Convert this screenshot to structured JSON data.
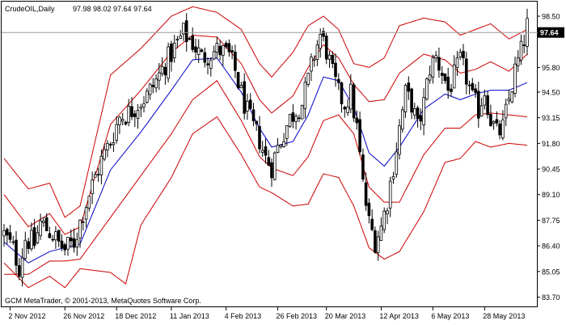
{
  "header": {
    "symbol": "CrudeOIL,Daily",
    "ohlc": "97.98 98.02 97.64 97.64"
  },
  "footer": {
    "copyright": "GCM MetaTrader, © 2001-2013, MetaQuotes Software Corp."
  },
  "chart_data": {
    "type": "candlestick",
    "current_price": "97.64",
    "ylim": [
      83.7,
      98.65
    ],
    "y_ticks": [
      "98.50",
      "97.15",
      "95.80",
      "94.50",
      "93.15",
      "91.80",
      "90.45",
      "89.10",
      "87.75",
      "86.40",
      "85.05",
      "83.70"
    ],
    "x_ticks": [
      "2 Nov 2012",
      "26 Nov 2012",
      "18 Dec 2012",
      "11 Jan 2013",
      "4 Feb 2013",
      "26 Feb 2013",
      "20 Mar 2013",
      "12 Apr 2013",
      "6 May 2013",
      "28 May 2013"
    ],
    "colors": {
      "candle": "#000000",
      "inner_bands": "#cc0000",
      "middle_bands": "#0000cc",
      "outer_bands": "#cc0000",
      "current_price_tag": "#000000"
    },
    "close_path": [
      [
        0,
        87.0
      ],
      [
        3,
        86.2
      ],
      [
        5,
        85.3
      ],
      [
        7,
        86.8
      ],
      [
        10,
        86.5
      ],
      [
        12,
        87.6
      ],
      [
        14,
        87.3
      ],
      [
        16,
        87.0
      ],
      [
        18,
        86.5
      ],
      [
        20,
        86.2
      ],
      [
        23,
        86.6
      ],
      [
        26,
        88.2
      ],
      [
        29,
        89.6
      ],
      [
        32,
        90.9
      ],
      [
        35,
        91.9
      ],
      [
        38,
        93.2
      ],
      [
        41,
        93.4
      ],
      [
        44,
        93.9
      ],
      [
        47,
        94.3
      ],
      [
        50,
        95.1
      ],
      [
        53,
        96.0
      ],
      [
        56,
        96.8
      ],
      [
        59,
        97.6
      ],
      [
        62,
        97.1
      ],
      [
        65,
        96.3
      ],
      [
        68,
        96.6
      ],
      [
        71,
        96.7
      ],
      [
        74,
        96.4
      ],
      [
        76,
        95.6
      ],
      [
        78,
        94.4
      ],
      [
        80,
        93.4
      ],
      [
        82,
        92.6
      ],
      [
        84,
        92.0
      ],
      [
        86,
        91.0
      ],
      [
        88,
        90.6
      ],
      [
        90,
        91.6
      ],
      [
        92,
        92.4
      ],
      [
        94,
        93.1
      ],
      [
        96,
        93.6
      ],
      [
        98,
        93.9
      ],
      [
        100,
        95.1
      ],
      [
        102,
        96.5
      ],
      [
        104,
        97.5
      ],
      [
        106,
        96.7
      ],
      [
        108,
        95.4
      ],
      [
        110,
        94.4
      ],
      [
        112,
        93.9
      ],
      [
        114,
        94.4
      ],
      [
        116,
        92.6
      ],
      [
        118,
        89.6
      ],
      [
        120,
        87.6
      ],
      [
        122,
        86.7
      ],
      [
        124,
        87.4
      ],
      [
        126,
        88.8
      ],
      [
        128,
        90.6
      ],
      [
        130,
        92.6
      ],
      [
        132,
        94.4
      ],
      [
        134,
        93.9
      ],
      [
        136,
        92.6
      ],
      [
        138,
        93.9
      ],
      [
        140,
        95.8
      ],
      [
        142,
        96.3
      ],
      [
        144,
        95.6
      ],
      [
        146,
        94.6
      ],
      [
        148,
        95.3
      ],
      [
        150,
        96.1
      ],
      [
        152,
        95.3
      ],
      [
        154,
        94.1
      ],
      [
        156,
        93.6
      ],
      [
        158,
        94.6
      ],
      [
        160,
        93.1
      ],
      [
        162,
        92.3
      ],
      [
        164,
        92.6
      ],
      [
        166,
        94.1
      ],
      [
        168,
        95.6
      ],
      [
        170,
        96.6
      ],
      [
        172,
        98.0
      ]
    ],
    "bands": {
      "upper_outer": [
        [
          0,
          91.0
        ],
        [
          8,
          89.4
        ],
        [
          15,
          89.7
        ],
        [
          20,
          87.9
        ],
        [
          25,
          88.5
        ],
        [
          35,
          95.4
        ],
        [
          45,
          96.8
        ],
        [
          55,
          98.5
        ],
        [
          62,
          99.0
        ],
        [
          70,
          98.7
        ],
        [
          78,
          97.8
        ],
        [
          84,
          96.0
        ],
        [
          88,
          95.3
        ],
        [
          95,
          96.6
        ],
        [
          100,
          98.0
        ],
        [
          105,
          98.5
        ],
        [
          110,
          97.8
        ],
        [
          115,
          96.0
        ],
        [
          120,
          95.8
        ],
        [
          125,
          96.3
        ],
        [
          130,
          98.0
        ],
        [
          138,
          98.4
        ],
        [
          145,
          98.2
        ],
        [
          150,
          97.5
        ],
        [
          155,
          97.8
        ],
        [
          160,
          98.1
        ],
        [
          166,
          97.3
        ],
        [
          172,
          97.8
        ]
      ],
      "upper_inner": [
        [
          0,
          89.1
        ],
        [
          8,
          87.4
        ],
        [
          15,
          88.1
        ],
        [
          20,
          87.0
        ],
        [
          25,
          87.4
        ],
        [
          35,
          92.8
        ],
        [
          45,
          94.6
        ],
        [
          55,
          96.6
        ],
        [
          62,
          97.5
        ],
        [
          70,
          97.4
        ],
        [
          78,
          96.0
        ],
        [
          84,
          94.1
        ],
        [
          88,
          93.4
        ],
        [
          95,
          94.3
        ],
        [
          100,
          95.8
        ],
        [
          105,
          97.0
        ],
        [
          110,
          96.3
        ],
        [
          115,
          94.9
        ],
        [
          120,
          94.0
        ],
        [
          125,
          94.1
        ],
        [
          130,
          95.5
        ],
        [
          138,
          96.5
        ],
        [
          145,
          96.2
        ],
        [
          150,
          95.5
        ],
        [
          155,
          95.7
        ],
        [
          160,
          96.1
        ],
        [
          166,
          95.6
        ],
        [
          172,
          96.5
        ]
      ],
      "middle": [
        [
          0,
          86.6
        ],
        [
          8,
          85.5
        ],
        [
          15,
          86.1
        ],
        [
          20,
          86.3
        ],
        [
          25,
          86.5
        ],
        [
          35,
          90.4
        ],
        [
          45,
          92.4
        ],
        [
          55,
          94.6
        ],
        [
          62,
          96.2
        ],
        [
          70,
          96.3
        ],
        [
          78,
          94.5
        ],
        [
          84,
          92.6
        ],
        [
          88,
          91.6
        ],
        [
          95,
          91.9
        ],
        [
          100,
          93.3
        ],
        [
          105,
          95.3
        ],
        [
          110,
          95.1
        ],
        [
          115,
          93.7
        ],
        [
          120,
          91.3
        ],
        [
          125,
          90.6
        ],
        [
          130,
          91.6
        ],
        [
          138,
          93.6
        ],
        [
          145,
          94.4
        ],
        [
          150,
          94.1
        ],
        [
          155,
          94.4
        ],
        [
          160,
          94.6
        ],
        [
          166,
          94.6
        ],
        [
          172,
          95.0
        ]
      ],
      "lower_inner": [
        [
          0,
          84.9
        ],
        [
          8,
          84.9
        ],
        [
          15,
          85.6
        ],
        [
          20,
          85.6
        ],
        [
          25,
          85.7
        ],
        [
          35,
          87.9
        ],
        [
          45,
          90.1
        ],
        [
          55,
          92.3
        ],
        [
          62,
          94.1
        ],
        [
          70,
          95.1
        ],
        [
          78,
          93.0
        ],
        [
          84,
          91.1
        ],
        [
          88,
          90.5
        ],
        [
          95,
          90.1
        ],
        [
          100,
          91.1
        ],
        [
          105,
          93.0
        ],
        [
          110,
          93.3
        ],
        [
          115,
          92.3
        ],
        [
          120,
          89.5
        ],
        [
          125,
          88.7
        ],
        [
          130,
          88.7
        ],
        [
          138,
          91.2
        ],
        [
          145,
          92.6
        ],
        [
          150,
          92.6
        ],
        [
          155,
          93.3
        ],
        [
          160,
          93.4
        ],
        [
          166,
          93.3
        ],
        [
          172,
          93.2
        ]
      ],
      "lower_outer": [
        [
          0,
          85.5
        ],
        [
          8,
          84.2
        ],
        [
          15,
          84.8
        ],
        [
          20,
          84.2
        ],
        [
          25,
          85.2
        ],
        [
          35,
          85.0
        ],
        [
          40,
          84.4
        ],
        [
          45,
          87.5
        ],
        [
          55,
          90.0
        ],
        [
          62,
          92.3
        ],
        [
          70,
          93.2
        ],
        [
          78,
          91.2
        ],
        [
          84,
          89.5
        ],
        [
          88,
          89.2
        ],
        [
          95,
          88.5
        ],
        [
          100,
          88.6
        ],
        [
          105,
          90.2
        ],
        [
          110,
          90.0
        ],
        [
          115,
          88.5
        ],
        [
          120,
          86.3
        ],
        [
          125,
          85.7
        ],
        [
          130,
          86.1
        ],
        [
          138,
          88.2
        ],
        [
          145,
          90.8
        ],
        [
          150,
          91.0
        ],
        [
          155,
          91.9
        ],
        [
          160,
          91.6
        ],
        [
          166,
          91.8
        ],
        [
          172,
          91.7
        ]
      ]
    }
  }
}
